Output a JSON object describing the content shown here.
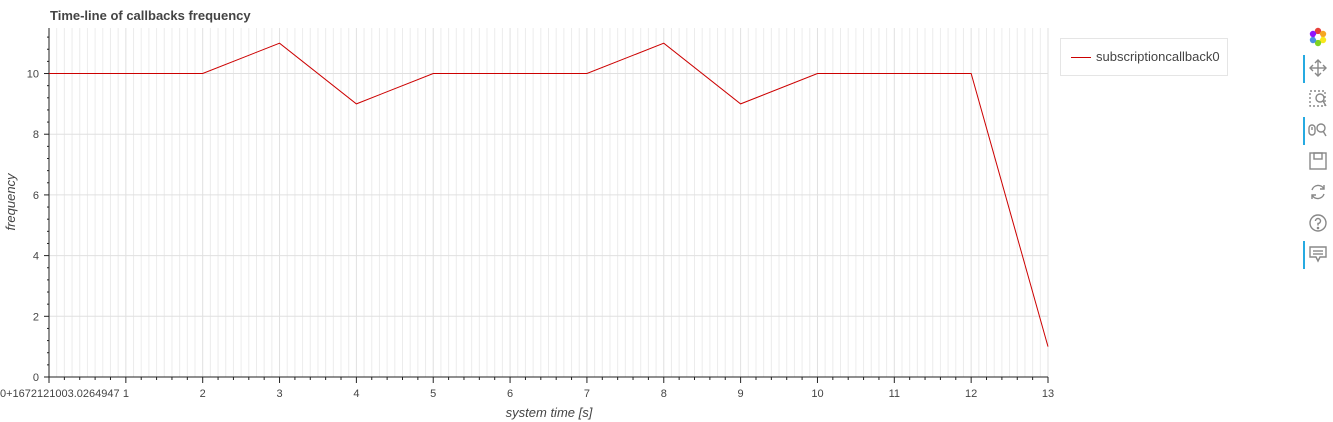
{
  "chart_data": {
    "type": "line",
    "title": "Time-line of callbacks frequency",
    "xlabel": "system time [s]",
    "ylabel": "frequency",
    "x_offset_label": "0+1672121003.0264947",
    "xlim": [
      0,
      13
    ],
    "ylim": [
      0,
      11.5
    ],
    "x_ticks": [
      1,
      2,
      3,
      4,
      5,
      6,
      7,
      8,
      9,
      10,
      11,
      12,
      13
    ],
    "y_ticks": [
      0,
      2,
      4,
      6,
      8,
      10
    ],
    "grid": true,
    "legend_position": "top-right-outside",
    "series": [
      {
        "name": "subscriptioncallback0",
        "color": "#cc0000",
        "x": [
          0,
          1,
          2,
          3,
          4,
          5,
          6,
          7,
          8,
          9,
          10,
          11,
          12,
          13
        ],
        "y": [
          10,
          10,
          10,
          11,
          9,
          10,
          10,
          10,
          11,
          9,
          10,
          10,
          10,
          1
        ]
      }
    ]
  },
  "toolbar": {
    "tools": [
      {
        "icon": "bokeh-logo-icon",
        "active": false
      },
      {
        "icon": "pan-icon",
        "active": true
      },
      {
        "icon": "box-zoom-icon",
        "active": false
      },
      {
        "icon": "wheel-zoom-icon",
        "active": true
      },
      {
        "icon": "save-icon",
        "active": false
      },
      {
        "icon": "reset-icon",
        "active": false
      },
      {
        "icon": "help-icon",
        "active": false
      },
      {
        "icon": "hover-icon",
        "active": true
      }
    ]
  }
}
